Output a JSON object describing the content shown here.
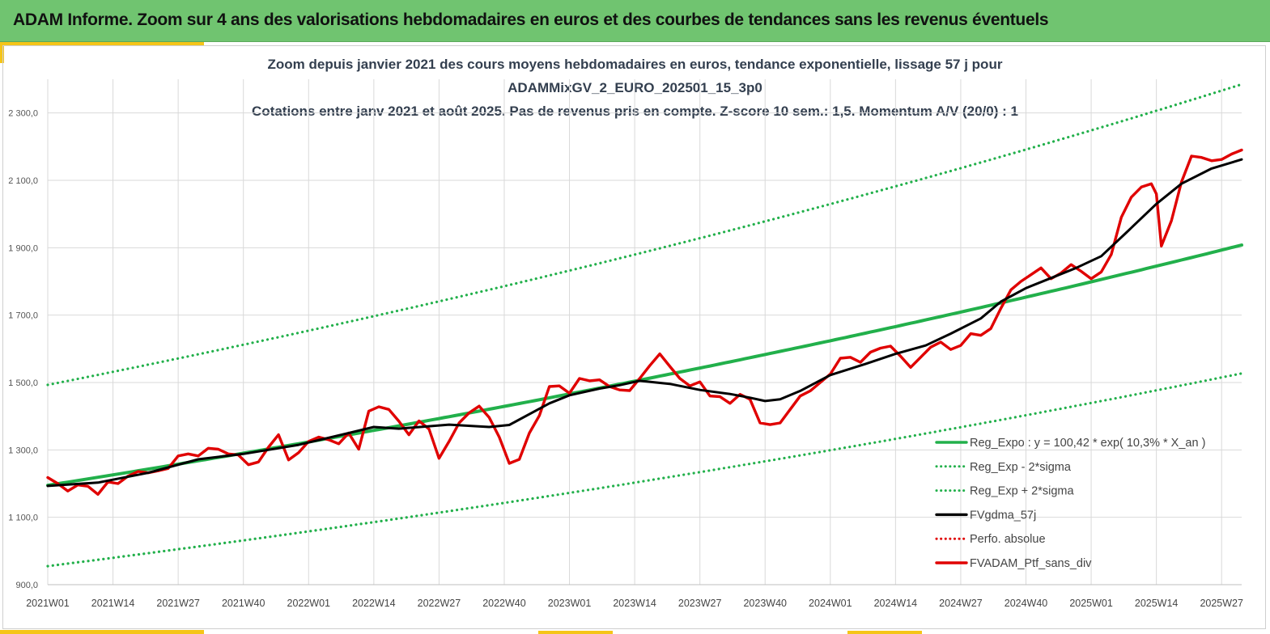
{
  "header": {
    "title": "ADAM Informe. Zoom sur 4 ans des valorisations hebdomadaires en euros et des courbes de tendances sans les revenus éventuels"
  },
  "chart_data": {
    "type": "line",
    "title_lines": [
      "Zoom depuis janvier 2021 des cours moyens hebdomadaires  en euros, tendance exponentielle, lissage 57 j pour",
      "ADAMMixGV_2_EURO_202501_15_3p0",
      "Cotations  entre janv 2021 et août 2025. Pas de revenus pris en compte. Z-score 10 sem.: 1,5. Momentum A/V (20/0) : 1"
    ],
    "x_ticks": [
      "2021W01",
      "2021W14",
      "2021W27",
      "2021W40",
      "2022W01",
      "2022W14",
      "2022W27",
      "2022W40",
      "2023W01",
      "2023W14",
      "2023W27",
      "2023W40",
      "2024W01",
      "2024W14",
      "2024W27",
      "2024W40",
      "2025W01",
      "2025W14",
      "2025W27"
    ],
    "x_tick_weeks": [
      0,
      13,
      26,
      39,
      52,
      65,
      78,
      91,
      104,
      117,
      130,
      143,
      156,
      169,
      182,
      195,
      208,
      221,
      234
    ],
    "x_range": [
      0,
      238
    ],
    "y_ticks": [
      "900,0",
      "1 100,0",
      "1 300,0",
      "1 500,0",
      "1 700,0",
      "1 900,0",
      "2 100,0",
      "2 300,0"
    ],
    "y_tick_values": [
      900,
      1100,
      1300,
      1500,
      1700,
      1900,
      2100,
      2300
    ],
    "ylim": [
      900,
      2400
    ],
    "grid": true,
    "legend_position": "bottom-right",
    "legend": [
      {
        "label": "Reg_Expo : y = 100,42 * exp( 10,3% *  X_an )",
        "color": "#22b04b",
        "style": "solid"
      },
      {
        "label": "Reg_Exp - 2*sigma",
        "color": "#22b04b",
        "style": "dotted"
      },
      {
        "label": "Reg_Exp + 2*sigma",
        "color": "#22b04b",
        "style": "dotted"
      },
      {
        "label": "FVgdma_57j",
        "color": "#000000",
        "style": "solid"
      },
      {
        "label": "Perfo. absolue",
        "color": "#e00000",
        "style": "dotted"
      },
      {
        "label": "FVADAM_Ptf_sans_div",
        "color": "#e00000",
        "style": "solid"
      }
    ],
    "series": [
      {
        "name": "Reg_Expo : y = 100,42 * exp( 10,3% *  X_an )",
        "x": [
          0,
          238
        ],
        "values": [
          1195,
          1908
        ],
        "exponential": true,
        "color": "#22b04b",
        "style": "solid"
      },
      {
        "name": "Reg_Exp - 2*sigma",
        "x": [
          0,
          238
        ],
        "values": [
          955,
          1527
        ],
        "exponential": true,
        "color": "#22b04b",
        "style": "dotted"
      },
      {
        "name": "Reg_Exp + 2*sigma",
        "x": [
          0,
          238
        ],
        "values": [
          1493,
          2385
        ],
        "exponential": true,
        "color": "#22b04b",
        "style": "dotted"
      },
      {
        "name": "FVgdma_57j",
        "x": [
          0,
          10,
          20,
          30,
          39,
          50,
          60,
          65,
          70,
          80,
          88,
          92,
          100,
          104,
          110,
          114,
          118,
          124,
          130,
          136,
          140,
          143,
          146,
          150,
          156,
          163,
          169,
          175,
          180,
          186,
          190,
          195,
          200,
          205,
          210,
          215,
          221,
          226,
          232,
          238
        ],
        "values": [
          1193,
          1203,
          1232,
          1272,
          1288,
          1315,
          1350,
          1368,
          1363,
          1375,
          1368,
          1374,
          1438,
          1462,
          1482,
          1492,
          1505,
          1496,
          1478,
          1466,
          1455,
          1445,
          1450,
          1475,
          1522,
          1555,
          1585,
          1610,
          1645,
          1690,
          1740,
          1780,
          1810,
          1840,
          1875,
          1945,
          2030,
          2090,
          2135,
          2162
        ],
        "color": "#000000",
        "style": "solid"
      },
      {
        "name": "FVADAM_Ptf_sans_div",
        "x": [
          0,
          2,
          4,
          6,
          8,
          10,
          12,
          14,
          16,
          18,
          20,
          22,
          24,
          26,
          28,
          30,
          32,
          34,
          36,
          38,
          40,
          42,
          44,
          46,
          48,
          50,
          52,
          54,
          56,
          58,
          60,
          62,
          64,
          66,
          68,
          70,
          72,
          74,
          76,
          78,
          80,
          82,
          84,
          86,
          88,
          90,
          92,
          94,
          96,
          98,
          100,
          102,
          104,
          106,
          108,
          110,
          112,
          114,
          116,
          118,
          120,
          122,
          124,
          126,
          128,
          130,
          132,
          134,
          136,
          138,
          140,
          142,
          144,
          146,
          148,
          150,
          152,
          154,
          156,
          158,
          160,
          162,
          164,
          166,
          168,
          170,
          172,
          174,
          176,
          178,
          180,
          182,
          184,
          186,
          188,
          190,
          192,
          194,
          196,
          198,
          200,
          202,
          204,
          206,
          208,
          210,
          212,
          214,
          216,
          218,
          220,
          221,
          222,
          224,
          226,
          228,
          230,
          232,
          234,
          236,
          238
        ],
        "values": [
          1218,
          1200,
          1178,
          1196,
          1192,
          1168,
          1205,
          1200,
          1222,
          1236,
          1232,
          1238,
          1245,
          1282,
          1288,
          1282,
          1305,
          1302,
          1288,
          1285,
          1256,
          1264,
          1308,
          1345,
          1270,
          1292,
          1325,
          1338,
          1330,
          1318,
          1350,
          1302,
          1415,
          1428,
          1420,
          1385,
          1345,
          1386,
          1362,
          1275,
          1325,
          1380,
          1410,
          1430,
          1396,
          1338,
          1260,
          1272,
          1350,
          1402,
          1488,
          1490,
          1468,
          1512,
          1505,
          1508,
          1488,
          1478,
          1476,
          1512,
          1550,
          1585,
          1548,
          1512,
          1490,
          1502,
          1460,
          1458,
          1438,
          1465,
          1450,
          1380,
          1375,
          1380,
          1420,
          1460,
          1475,
          1500,
          1525,
          1572,
          1575,
          1560,
          1590,
          1602,
          1608,
          1578,
          1545,
          1575,
          1605,
          1620,
          1598,
          1610,
          1645,
          1640,
          1660,
          1720,
          1775,
          1800,
          1820,
          1840,
          1808,
          1825,
          1850,
          1830,
          1808,
          1828,
          1880,
          1990,
          2050,
          2080,
          2090,
          2060,
          1905,
          1980,
          2095,
          2172,
          2168,
          2158,
          2162,
          2178,
          2190
        ],
        "color": "#e00000",
        "style": "solid"
      }
    ]
  }
}
